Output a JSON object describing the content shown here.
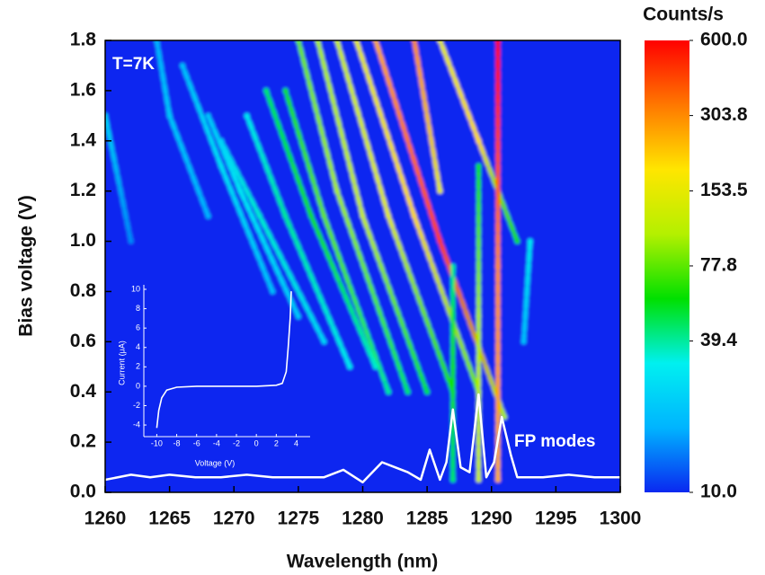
{
  "chart_data": [
    {
      "type": "heatmap",
      "xlabel": "Wavelength (nm)",
      "ylabel": "Bias voltage (V)",
      "xlim": [
        1260,
        1300
      ],
      "ylim": [
        0,
        1.8
      ],
      "xticks": [
        1260,
        1265,
        1270,
        1275,
        1280,
        1285,
        1290,
        1295,
        1300
      ],
      "yticks": [
        {
          "value": 0,
          "label": "0.0"
        },
        0.2,
        0.4,
        0.6,
        0.8,
        {
          "value": 1,
          "label": "1.0"
        },
        1.2,
        1.4,
        1.6,
        1.8
      ],
      "background": 10,
      "colorbar": {
        "title": "Counts/s",
        "lim": [
          10,
          600
        ],
        "log": true,
        "colors": [
          "#0a28f0",
          "#00b4ff",
          "#00f0f0",
          "#00e000",
          "#b4f000",
          "#ffe600",
          "#ff7800",
          "#ff0000"
        ],
        "ticks": [
          {
            "value": 10,
            "label": "10.0"
          },
          39.4,
          77.8,
          153.5,
          303.8,
          {
            "value": 600,
            "label": "600.0"
          }
        ]
      },
      "streaks": [
        {
          "x": [
            1291,
            1286,
            1281
          ],
          "y": [
            0.3,
            1.0,
            1.8
          ],
          "values": [
            100,
            450,
            250
          ]
        },
        {
          "x": [
            1289,
            1284,
            1279.5
          ],
          "y": [
            0.4,
            1.1,
            1.8
          ],
          "values": [
            80,
            200,
            150
          ]
        },
        {
          "x": [
            1287,
            1282,
            1278
          ],
          "y": [
            0.4,
            1.1,
            1.8
          ],
          "values": [
            60,
            150,
            120
          ]
        },
        {
          "x": [
            1285,
            1280,
            1276.5
          ],
          "y": [
            0.4,
            1.1,
            1.8
          ],
          "values": [
            50,
            120,
            100
          ]
        },
        {
          "x": [
            1283.5,
            1278,
            1275
          ],
          "y": [
            0.4,
            1.2,
            1.8
          ],
          "values": [
            45,
            100,
            80
          ]
        },
        {
          "x": [
            1282,
            1277,
            1274
          ],
          "y": [
            0.4,
            1.1,
            1.6
          ],
          "values": [
            40,
            80,
            60
          ]
        },
        {
          "x": [
            1281,
            1276,
            1272.5
          ],
          "y": [
            0.5,
            1.1,
            1.6
          ],
          "values": [
            35,
            60,
            45
          ]
        },
        {
          "x": [
            1279,
            1274,
            1271
          ],
          "y": [
            0.5,
            1.1,
            1.5
          ],
          "values": [
            30,
            40,
            30
          ]
        },
        {
          "x": [
            1277,
            1272,
            1269
          ],
          "y": [
            0.6,
            1.1,
            1.4
          ],
          "values": [
            25,
            35,
            25
          ]
        },
        {
          "x": [
            1275,
            1270.5,
            1268
          ],
          "y": [
            0.7,
            1.2,
            1.5
          ],
          "values": [
            22,
            30,
            22
          ]
        },
        {
          "x": [
            1273,
            1269,
            1266
          ],
          "y": [
            0.8,
            1.3,
            1.7
          ],
          "values": [
            20,
            28,
            20
          ]
        },
        {
          "x": [
            1268,
            1265,
            1264
          ],
          "y": [
            1.1,
            1.5,
            1.8
          ],
          "values": [
            18,
            22,
            18
          ]
        },
        {
          "x": [
            1262,
            1260
          ],
          "y": [
            1.0,
            1.5
          ],
          "values": [
            15,
            25
          ]
        },
        {
          "x": [
            1292,
            1289,
            1286
          ],
          "y": [
            1.0,
            1.4,
            1.8
          ],
          "values": [
            60,
            200,
            150
          ]
        },
        {
          "x": [
            1286,
            1284
          ],
          "y": [
            1.2,
            1.8
          ],
          "values": [
            150,
            300
          ]
        },
        {
          "x": [
            1290.5,
            1290.5,
            1290.5
          ],
          "y": [
            0.05,
            0.9,
            1.8
          ],
          "values": [
            250,
            300,
            600
          ]
        },
        {
          "x": [
            1289,
            1289,
            1289
          ],
          "y": [
            0.05,
            0.7,
            1.3
          ],
          "values": [
            120,
            100,
            60
          ]
        },
        {
          "x": [
            1287,
            1287,
            1287
          ],
          "y": [
            0.05,
            0.5,
            0.9
          ],
          "values": [
            45,
            60,
            40
          ]
        },
        {
          "x": [
            1293,
            1292.5
          ],
          "y": [
            1.0,
            0.6
          ],
          "values": [
            30,
            20
          ]
        }
      ],
      "spectrum": {
        "color": "#ffffff",
        "x": [
          1260,
          1262,
          1263.5,
          1265,
          1267,
          1269,
          1271,
          1273,
          1275,
          1277,
          1278.5,
          1280,
          1281.5,
          1282.5,
          1283.5,
          1284.5,
          1285.2,
          1286,
          1286.5,
          1287,
          1287.6,
          1288.3,
          1289,
          1289.6,
          1290.2,
          1290.8,
          1291.5,
          1292,
          1294,
          1296,
          1298,
          1300
        ],
        "y": [
          0.05,
          0.07,
          0.06,
          0.07,
          0.06,
          0.06,
          0.07,
          0.06,
          0.06,
          0.06,
          0.09,
          0.04,
          0.12,
          0.1,
          0.08,
          0.05,
          0.17,
          0.05,
          0.12,
          0.33,
          0.1,
          0.08,
          0.39,
          0.06,
          0.12,
          0.3,
          0.15,
          0.06,
          0.06,
          0.07,
          0.06,
          0.06
        ]
      },
      "annotations": [
        {
          "text": "T=7K"
        },
        {
          "text": "FP modes"
        }
      ]
    },
    {
      "type": "line",
      "xlabel": "Voltage (V)",
      "ylabel": "Current (μA)",
      "xlim": [
        -11.3,
        5.4
      ],
      "ylim": [
        -5.2,
        10
      ],
      "xticks": [
        -10,
        -8,
        -6,
        -4,
        -2,
        0,
        2,
        4
      ],
      "yticks": [
        -4,
        -2,
        0,
        2,
        4,
        6,
        8,
        10
      ],
      "color": "#ffffff",
      "x": [
        -10,
        -9.8,
        -9.5,
        -9,
        -8,
        -6,
        -4,
        -2,
        0,
        2,
        2.6,
        3,
        3.2,
        3.4,
        3.5
      ],
      "y": [
        -4.3,
        -2.5,
        -1.2,
        -0.4,
        -0.1,
        0,
        0,
        0,
        0,
        0.1,
        0.3,
        1.5,
        4,
        7,
        9.8
      ]
    }
  ]
}
